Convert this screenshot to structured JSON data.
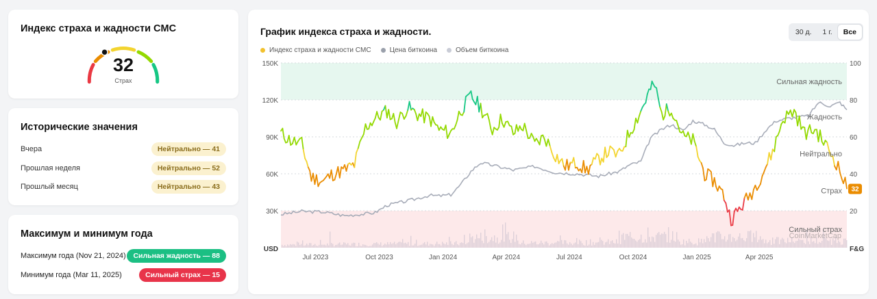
{
  "index_card": {
    "title": "Индекс страха и жадности CMC",
    "value": "32",
    "label": "Страх"
  },
  "historical": {
    "title": "Исторические значения",
    "rows": [
      {
        "label": "Вчера",
        "badge": "Нейтрально — 41"
      },
      {
        "label": "Прошлая неделя",
        "badge": "Нейтрально — 52"
      },
      {
        "label": "Прошлый месяц",
        "badge": "Нейтрально — 43"
      }
    ]
  },
  "year_extremes": {
    "title": "Максимум и минимум года",
    "max": {
      "label": "Максимум года (Nov 21, 2024)",
      "badge": "Сильная жадность — 88"
    },
    "min": {
      "label": "Минимум года (Mar 11, 2025)",
      "badge": "Сильный страх — 15"
    }
  },
  "chart_panel": {
    "title": "График индекса страха и жадности.",
    "ranges": [
      "30 д.",
      "1 г.",
      "Все"
    ],
    "active_range": "Все",
    "legend": [
      {
        "label": "Индекс страха и жадности CMC",
        "color": "#f2c12e"
      },
      {
        "label": "Цена биткоина",
        "color": "#9aa0ab"
      },
      {
        "label": "Объем биткоина",
        "color": "#c9ccd6"
      }
    ],
    "current_badge": "32",
    "watermark": "CoinMarketCap"
  },
  "colors": {
    "extreme_greed": "#16c784",
    "greed": "#93d900",
    "neutral": "#f3d42f",
    "fear": "#ea8c00",
    "extreme_fear": "#ea3943",
    "price": "#a7acb8",
    "volume": "#d7cbd6"
  },
  "chart_data": {
    "type": "line",
    "x_ticks": [
      "Jul 2023",
      "Oct 2023",
      "Jan 2024",
      "Apr 2024",
      "Jul 2024",
      "Oct 2024",
      "Jan 2025",
      "Apr 2025"
    ],
    "left_axis": {
      "label": "USD",
      "ticks": [
        "150K",
        "120K",
        "90K",
        "60K",
        "30K"
      ],
      "range": [
        0,
        150000
      ]
    },
    "right_axis": {
      "label": "F&G",
      "ticks": [
        "100",
        "80",
        "60",
        "40",
        "20"
      ],
      "range": [
        0,
        100
      ]
    },
    "zones": [
      {
        "name": "Сильная жадность",
        "from": 80,
        "to": 100,
        "color": "#e6f7ef"
      },
      {
        "name": "Жадность",
        "level": 60
      },
      {
        "name": "Нейтрально",
        "level": 40
      },
      {
        "name": "Страх",
        "level": 20
      },
      {
        "name": "Сильный страх",
        "from": 0,
        "to": 20,
        "color": "#fde9ea"
      }
    ],
    "series": [
      {
        "name": "Индекс страха и жадности CMC",
        "axis": "right",
        "x": [
          "2023-06-01",
          "2023-06-15",
          "2023-07-01",
          "2023-07-15",
          "2023-08-01",
          "2023-08-15",
          "2023-09-01",
          "2023-09-15",
          "2023-10-01",
          "2023-10-15",
          "2023-11-01",
          "2023-11-15",
          "2023-12-01",
          "2023-12-15",
          "2024-01-01",
          "2024-01-15",
          "2024-02-01",
          "2024-02-15",
          "2024-03-01",
          "2024-03-15",
          "2024-04-01",
          "2024-04-15",
          "2024-05-01",
          "2024-05-15",
          "2024-06-01",
          "2024-06-15",
          "2024-07-01",
          "2024-07-15",
          "2024-08-01",
          "2024-08-15",
          "2024-09-01",
          "2024-09-15",
          "2024-10-01",
          "2024-10-15",
          "2024-11-01",
          "2024-11-15",
          "2024-11-21",
          "2024-12-01",
          "2024-12-15",
          "2025-01-01",
          "2025-01-15",
          "2025-02-01",
          "2025-02-15",
          "2025-03-01",
          "2025-03-11",
          "2025-03-25",
          "2025-04-10",
          "2025-04-25",
          "2025-05-10",
          "2025-05-25",
          "2025-06-10",
          "2025-06-25",
          "2025-07-10",
          "2025-07-25",
          "2025-08-10",
          "2025-08-25"
        ],
        "values": [
          62,
          58,
          56,
          38,
          36,
          40,
          42,
          45,
          65,
          70,
          74,
          68,
          76,
          72,
          70,
          64,
          62,
          74,
          82,
          76,
          64,
          70,
          62,
          66,
          56,
          60,
          50,
          44,
          46,
          42,
          48,
          52,
          50,
          62,
          74,
          86,
          88,
          72,
          76,
          60,
          58,
          40,
          36,
          28,
          15,
          22,
          30,
          40,
          52,
          70,
          74,
          62,
          64,
          56,
          46,
          32
        ]
      },
      {
        "name": "Цена биткоина",
        "axis": "left",
        "x": [
          "2023-06-01",
          "2023-07-01",
          "2023-08-01",
          "2023-09-01",
          "2023-10-01",
          "2023-10-15",
          "2023-11-01",
          "2023-12-01",
          "2024-01-01",
          "2024-01-15",
          "2024-02-01",
          "2024-02-15",
          "2024-03-01",
          "2024-03-15",
          "2024-04-01",
          "2024-05-01",
          "2024-06-01",
          "2024-07-01",
          "2024-08-01",
          "2024-09-01",
          "2024-10-01",
          "2024-10-15",
          "2024-11-01",
          "2024-11-15",
          "2024-12-01",
          "2024-12-15",
          "2025-01-01",
          "2025-01-15",
          "2025-02-01",
          "2025-02-15",
          "2025-03-01",
          "2025-03-15",
          "2025-04-01",
          "2025-04-15",
          "2025-05-01",
          "2025-05-15",
          "2025-06-01",
          "2025-06-15",
          "2025-07-01",
          "2025-07-15",
          "2025-08-01",
          "2025-08-15",
          "2025-08-25"
        ],
        "values": [
          27000,
          29500,
          29000,
          26000,
          27500,
          28500,
          34500,
          38000,
          42500,
          42000,
          43000,
          51000,
          62000,
          69000,
          67000,
          63000,
          66000,
          61000,
          60000,
          58000,
          62000,
          67000,
          70000,
          89000,
          96000,
          100000,
          95000,
          103000,
          100000,
          96000,
          85000,
          83000,
          85000,
          85000,
          96000,
          103000,
          105000,
          106000,
          107000,
          118000,
          115000,
          118000,
          112000
        ]
      },
      {
        "name": "Объем биткоина",
        "axis": "left",
        "note": "dense volume bars along the bottom of the chart"
      }
    ]
  }
}
